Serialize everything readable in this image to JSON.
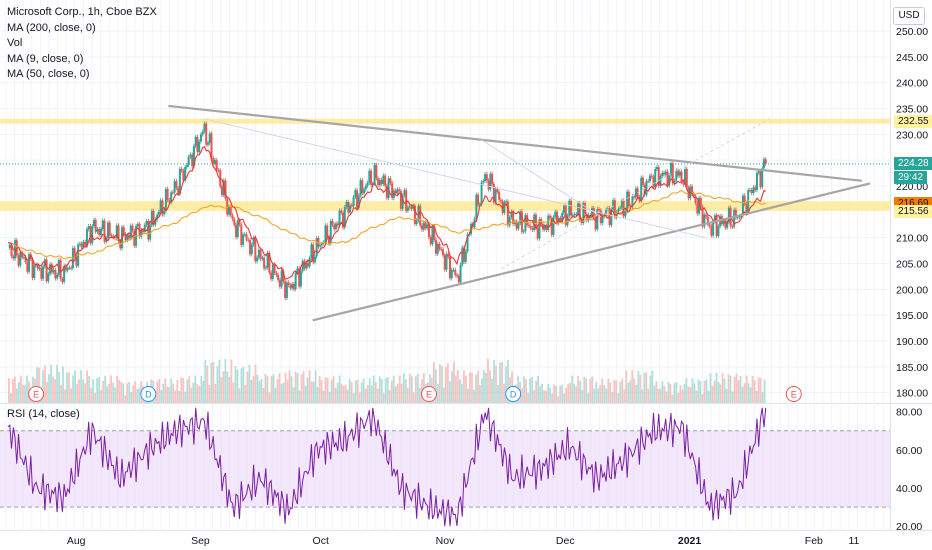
{
  "legend": {
    "title": "Microsoft Corp., 1h, Cboe BZX",
    "ma200": "MA (200, close, 0)",
    "vol": "Vol",
    "ma9": "MA (9, close, 0)",
    "ma50": "MA (50, close, 0)"
  },
  "currency": "USD",
  "rsi_label": "RSI (14, close)",
  "colors": {
    "up": "#26a69a",
    "down": "#ef5350",
    "ma9": "#e53935",
    "ma50": "#f5a623",
    "rsi": "#7b1fa2",
    "rsi_band": "#e9d6f7",
    "trendline": "#a6a6a6",
    "zone": "#ffe680"
  },
  "price_tags": {
    "resistance": "232.55",
    "last": "224.28",
    "countdown": "29:42",
    "ma50_value": "216.69",
    "support": "215.56"
  },
  "event_markers": [
    {
      "type": "E",
      "date": "2020-07-22"
    },
    {
      "type": "D",
      "date": "2020-08-19"
    },
    {
      "type": "E",
      "date": "2020-10-28"
    },
    {
      "type": "D",
      "date": "2020-11-18"
    },
    {
      "type": "E",
      "date": "2021-01-27"
    }
  ],
  "chart_data": {
    "type": "line",
    "title": "Microsoft Corp., 1h, Cboe BZX",
    "x_ticks": [
      "Aug",
      "Sep",
      "Oct",
      "Nov",
      "Dec",
      "2021",
      "Feb",
      "11"
    ],
    "price_axis": {
      "ticks": [
        "250.00",
        "245.00",
        "240.00",
        "235.00",
        "230.00",
        "225.00",
        "220.00",
        "210.00",
        "205.00",
        "200.00",
        "195.00",
        "190.00",
        "185.00",
        "180.00"
      ],
      "ylim": [
        178,
        256
      ]
    },
    "rsi_axis": {
      "ticks": [
        "80.00",
        "60.00",
        "40.00",
        "20.00"
      ],
      "ylim": [
        18,
        84
      ],
      "band": [
        30,
        70
      ]
    },
    "series": [
      {
        "name": "Microsoft Corp.",
        "kind": "price",
        "x": [
          "2020-07-15",
          "2020-07-22",
          "2020-07-29",
          "2020-08-05",
          "2020-08-12",
          "2020-08-19",
          "2020-08-26",
          "2020-09-02",
          "2020-09-09",
          "2020-09-16",
          "2020-09-23",
          "2020-09-30",
          "2020-10-07",
          "2020-10-14",
          "2020-10-21",
          "2020-10-28",
          "2020-11-04",
          "2020-11-11",
          "2020-11-18",
          "2020-11-25",
          "2020-12-02",
          "2020-12-09",
          "2020-12-16",
          "2020-12-23",
          "2020-12-30",
          "2021-01-06",
          "2021-01-13",
          "2021-01-20"
        ],
        "values": [
          208,
          204,
          203,
          212,
          210,
          212,
          220,
          231,
          213,
          206,
          200,
          208,
          215,
          222,
          218,
          211,
          202,
          222,
          213,
          212,
          215,
          214,
          216,
          222,
          222,
          212,
          214,
          224.28
        ]
      },
      {
        "name": "MA (9, close, 0)",
        "kind": "ma9",
        "x": [
          "2020-07-15",
          "2020-07-22",
          "2020-07-29",
          "2020-08-05",
          "2020-08-12",
          "2020-08-19",
          "2020-08-26",
          "2020-09-02",
          "2020-09-09",
          "2020-09-16",
          "2020-09-23",
          "2020-09-30",
          "2020-10-07",
          "2020-10-14",
          "2020-10-21",
          "2020-10-28",
          "2020-11-04",
          "2020-11-11",
          "2020-11-18",
          "2020-11-25",
          "2020-12-02",
          "2020-12-09",
          "2020-12-16",
          "2020-12-23",
          "2020-12-30",
          "2021-01-06",
          "2021-01-13",
          "2021-01-20"
        ],
        "values": [
          209,
          205,
          204,
          210,
          210,
          212,
          218,
          228,
          216,
          208,
          202,
          207,
          213,
          220,
          218,
          213,
          205,
          218,
          215,
          212,
          214,
          214,
          215,
          220,
          221,
          214,
          213,
          219
        ]
      },
      {
        "name": "MA (50, close, 0)",
        "kind": "ma50",
        "x": [
          "2020-07-15",
          "2020-07-22",
          "2020-07-29",
          "2020-08-05",
          "2020-08-12",
          "2020-08-19",
          "2020-08-26",
          "2020-09-02",
          "2020-09-09",
          "2020-09-16",
          "2020-09-23",
          "2020-09-30",
          "2020-10-07",
          "2020-10-14",
          "2020-10-21",
          "2020-10-28",
          "2020-11-04",
          "2020-11-11",
          "2020-11-18",
          "2020-11-25",
          "2020-12-02",
          "2020-12-09",
          "2020-12-16",
          "2020-12-23",
          "2020-12-30",
          "2021-01-06",
          "2021-01-13",
          "2021-01-20"
        ],
        "values": [
          209,
          207,
          206,
          207,
          209,
          211,
          213,
          216,
          216,
          214,
          211,
          209,
          209,
          212,
          214,
          213,
          211,
          212,
          213,
          213,
          213,
          214,
          215,
          217,
          219,
          218,
          217,
          216.69
        ]
      },
      {
        "name": "RSI (14, close)",
        "kind": "rsi",
        "x": [
          "2020-07-15",
          "2020-07-22",
          "2020-07-29",
          "2020-08-05",
          "2020-08-12",
          "2020-08-19",
          "2020-08-26",
          "2020-09-02",
          "2020-09-09",
          "2020-09-16",
          "2020-09-23",
          "2020-09-30",
          "2020-10-07",
          "2020-10-14",
          "2020-10-21",
          "2020-10-28",
          "2020-11-04",
          "2020-11-11",
          "2020-11-18",
          "2020-11-25",
          "2020-12-02",
          "2020-12-09",
          "2020-12-16",
          "2020-12-23",
          "2020-12-30",
          "2021-01-06",
          "2021-01-13",
          "2021-01-20"
        ],
        "values": [
          72,
          40,
          35,
          70,
          45,
          60,
          70,
          75,
          30,
          45,
          28,
          60,
          65,
          78,
          40,
          30,
          25,
          80,
          45,
          50,
          62,
          45,
          55,
          70,
          72,
          30,
          38,
          82
        ]
      }
    ],
    "volume": {
      "x": [
        "2020-07-15",
        "2020-07-22",
        "2020-07-29",
        "2020-08-05",
        "2020-08-12",
        "2020-08-19",
        "2020-08-26",
        "2020-09-02",
        "2020-09-09",
        "2020-09-16",
        "2020-09-23",
        "2020-09-30",
        "2020-10-07",
        "2020-10-14",
        "2020-10-21",
        "2020-10-28",
        "2020-11-04",
        "2020-11-11",
        "2020-11-18",
        "2020-11-25",
        "2020-12-02",
        "2020-12-09",
        "2020-12-16",
        "2020-12-23",
        "2020-12-30",
        "2021-01-06",
        "2021-01-13",
        "2021-01-20"
      ],
      "relative": [
        0.5,
        0.7,
        0.6,
        0.5,
        0.4,
        0.45,
        0.5,
        0.8,
        0.7,
        0.55,
        0.6,
        0.5,
        0.45,
        0.5,
        0.55,
        0.75,
        0.6,
        0.8,
        0.5,
        0.35,
        0.5,
        0.45,
        0.6,
        0.4,
        0.45,
        0.55,
        0.5,
        0.7
      ]
    },
    "trendlines": [
      {
        "name": "upper",
        "start": {
          "date": "2020-08-24",
          "value": 235.5
        },
        "end": {
          "date": "2021-02-13",
          "value": 221
        }
      },
      {
        "name": "lower",
        "start": {
          "date": "2020-09-29",
          "value": 194
        },
        "end": {
          "date": "2021-02-15",
          "value": 220.5
        }
      }
    ],
    "horizontal_zones": [
      {
        "name": "resistance",
        "value": 232.55
      },
      {
        "name": "support",
        "values": [
          215.56,
          216.69
        ]
      }
    ],
    "grid": true,
    "legend_position": "top-left"
  }
}
